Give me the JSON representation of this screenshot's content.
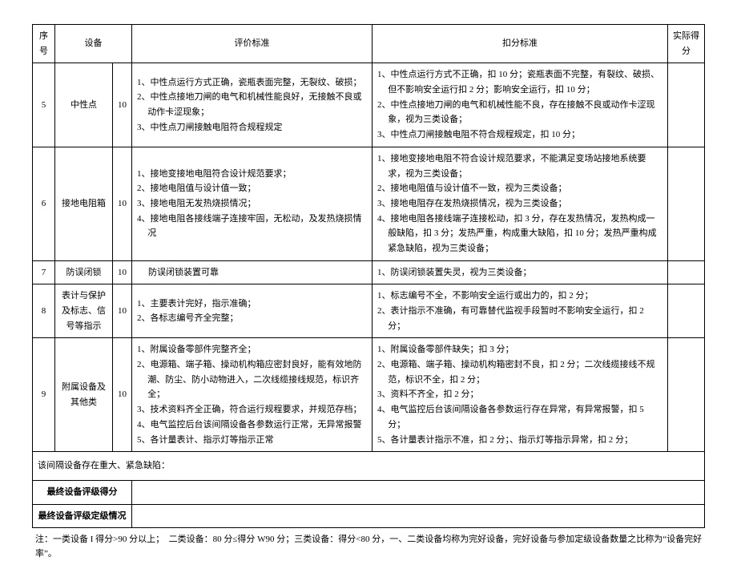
{
  "header": {
    "seq": "序号",
    "equip": "设备",
    "eval": "评价标准",
    "deduct": "扣分标准",
    "actual": "实际得分"
  },
  "rows": [
    {
      "seq": "5",
      "equip": "中性点",
      "score": "10",
      "eval": [
        "1、中性点运行方式正确，瓷瓶表面完整，无裂纹、破损；",
        "2、中性点接地刀闸的电气和机械性能良好，无接触不良或动作卡涩现象；",
        "3、中性点刀闸接触电阻符合规程规定"
      ],
      "deduct": [
        "1、中性点运行方式不正确，扣 10 分；瓷瓶表面不完整，有裂纹、破损、但不影响安全运行扣 2 分；影响安全运行，扣 10 分；",
        "2、中性点接地刀闸的电气和机械性能不良，存在接触不良或动作卡涩现象，视为三类设备；",
        "3、中性点刀闸接触电阻不符合规程规定，扣 10 分；"
      ]
    },
    {
      "seq": "6",
      "equip": "接地电阻箱",
      "score": "10",
      "eval": [
        "1、接地变接地电阻符合设计规范要求；",
        "2、接地电阻值与设计值一致；",
        "3、接地电阻无发热烧损情况；",
        "4、接地电阻各接线端子连接牢固，无松动，及发热烧损情况"
      ],
      "deduct": [
        "1、接地变接地电阻不符合设计规范要求，不能满足变场站接地系统要求，视为三类设备；",
        "2、接地电阻值与设计值不一致，视为三类设备；",
        "3、接地电阻存在发热烧损情况，视为三类设备；",
        "4、接地电阻各接线端子连接松动，扣 3 分，存在发热情况，发热构成一般缺陷，扣 3 分；发热严重，构成重大缺陷，扣 10 分；发热严重构成紧急缺陷，视为三类设备；"
      ]
    },
    {
      "seq": "7",
      "equip": "防误闭锁",
      "score": "10",
      "eval_single": "防误闭锁装置可靠",
      "deduct_single": "1、防误闭锁装置失灵，视为三类设备；"
    },
    {
      "seq": "8",
      "equip": "表计与保护及标志、信号等指示",
      "score": "10",
      "eval": [
        "1、主要表计完好，指示准确；",
        "2、各标志编号齐全完整；"
      ],
      "deduct": [
        "1、标志编号不全，不影响安全运行或出力的，扣 2 分；",
        "2、表计指示不准确，有可靠替代监视手段暂时不影响安全运行，扣 2 分；"
      ]
    },
    {
      "seq": "9",
      "equip": "附属设备及其他类",
      "score": "10",
      "eval": [
        "1、附属设备零部件完整齐全；",
        "2、电源箱、端子箱、操动机构箱应密封良好，能有效地防潮、防尘、防小动物进入，二次线缆接线规范，标识齐全；",
        "3、技术资料齐全正确，符合运行规程要求，并规范存档；",
        "4、电气监控后台该间隔设备各参数运行正常，无异常报警",
        "5、各计量表计、指示灯等指示正常"
      ],
      "deduct": [
        "1、附属设备零部件缺失；扣 3 分；",
        "2、电源箱、端子箱、操动机构箱密封不良，扣 2 分；二次线缆接线不规范，标识不全，扣 2 分；",
        "3、资料不齐全，扣 2 分；",
        "4、电气监控后台该间隔设备各参数运行存在异常，有异常报警，扣 5 分；",
        "5、各计量表计指示不准，扣 2 分；、指示灯等指示异常，扣 2 分；"
      ]
    }
  ],
  "defect_row": "该间隔设备存在重大、紧急缺陷：",
  "final_score_label": "最终设备评级得分",
  "final_grade_label": "最终设备评级定级情况",
  "footnote": "注：一类设备 I 得分>90 分以上；　二类设备：80 分≤得分 W90 分；三类设备：得分<80 分，一、二类设备均称为完好设备，完好设备与参加定级设备数量之比称为“设备完好率”。"
}
